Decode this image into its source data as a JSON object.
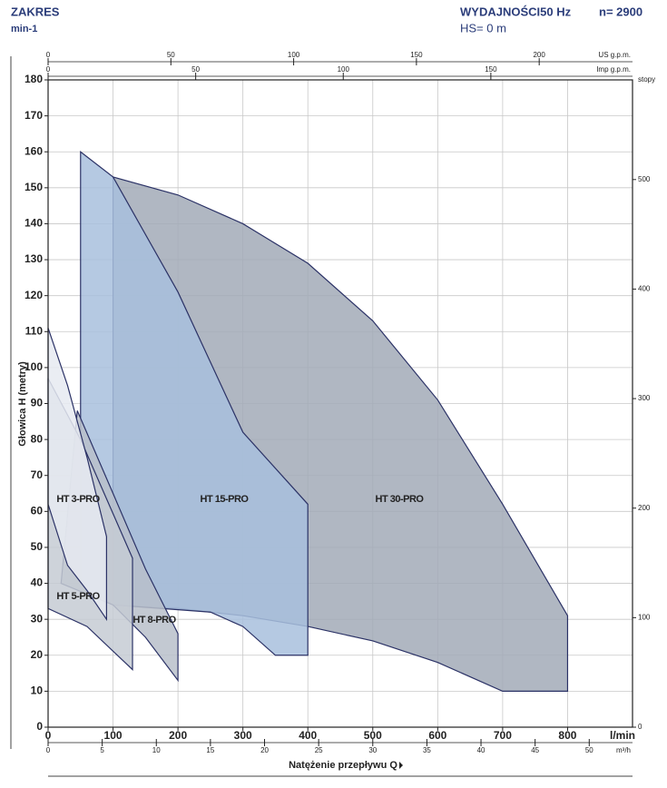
{
  "header": {
    "left_title": "ZAKRES",
    "left_subtitle": "min-1",
    "right_title": "WYDAJNOŚCI50 Hz",
    "speed": "n= 2900",
    "suction": "HS= 0 m"
  },
  "chart_data": {
    "type": "area",
    "xlabel": "Natężenie przepływu Q",
    "xunit": "l/min",
    "ylabel": "Głowica H (metry)",
    "xlim": [
      0,
      900
    ],
    "xticks": [
      0,
      100,
      200,
      300,
      400,
      500,
      600,
      700,
      800
    ],
    "ylim": [
      0,
      180
    ],
    "yticks": [
      0,
      10,
      20,
      30,
      40,
      50,
      60,
      70,
      80,
      90,
      100,
      110,
      120,
      130,
      140,
      150,
      160,
      170,
      180
    ],
    "grid": true,
    "secondary_axes": [
      {
        "label": "US g.p.m.",
        "position": "top",
        "lim": [
          0,
          238
        ],
        "ticks": [
          0,
          50,
          100,
          150,
          200
        ]
      },
      {
        "label": "Imp g.p.m.",
        "position": "top",
        "lim": [
          0,
          198
        ],
        "ticks": [
          0,
          50,
          100,
          150
        ]
      },
      {
        "label": "m³/h",
        "position": "bottom",
        "lim": [
          0,
          54
        ],
        "ticks": [
          0,
          5,
          10,
          15,
          20,
          25,
          30,
          35,
          40,
          45,
          50
        ]
      },
      {
        "label": "stopy",
        "position": "right",
        "lim": [
          0,
          591
        ],
        "ticks": [
          0,
          100,
          200,
          300,
          400,
          500
        ]
      }
    ],
    "series": [
      {
        "name": "HT 30-PRO",
        "color": "#a2aab7",
        "x": [
          100,
          200,
          300,
          400,
          500,
          600,
          700,
          800,
          800,
          700,
          600,
          500,
          400,
          300,
          200,
          100
        ],
        "values": [
          153,
          148,
          140,
          129,
          113,
          91,
          62,
          31,
          10,
          10,
          18,
          24,
          28,
          31,
          33,
          34
        ]
      },
      {
        "name": "HT 15-PRO",
        "color": "#a8bfdd",
        "x": [
          50,
          100,
          200,
          300,
          400,
          400,
          350,
          300,
          250,
          100,
          50
        ],
        "values": [
          160,
          153,
          121,
          82,
          62,
          20,
          20,
          28,
          32,
          34,
          40
        ]
      },
      {
        "name": "HT 8-PRO",
        "color": "#b9bfca",
        "x": [
          45,
          100,
          150,
          200,
          200,
          150,
          100,
          20
        ],
        "values": [
          88,
          65,
          44,
          26,
          13,
          25,
          34,
          40
        ]
      },
      {
        "name": "HT 5-PRO",
        "color": "#c6cbd4",
        "x": [
          0,
          50,
          130,
          130,
          60,
          0
        ],
        "values": [
          97,
          80,
          47,
          16,
          28,
          33
        ]
      },
      {
        "name": "HT 3-PRO",
        "color": "#e6eaf1",
        "x": [
          0,
          30,
          60,
          90,
          90,
          60,
          30,
          0
        ],
        "values": [
          111,
          95,
          75,
          53,
          30,
          38,
          45,
          62
        ]
      }
    ]
  }
}
